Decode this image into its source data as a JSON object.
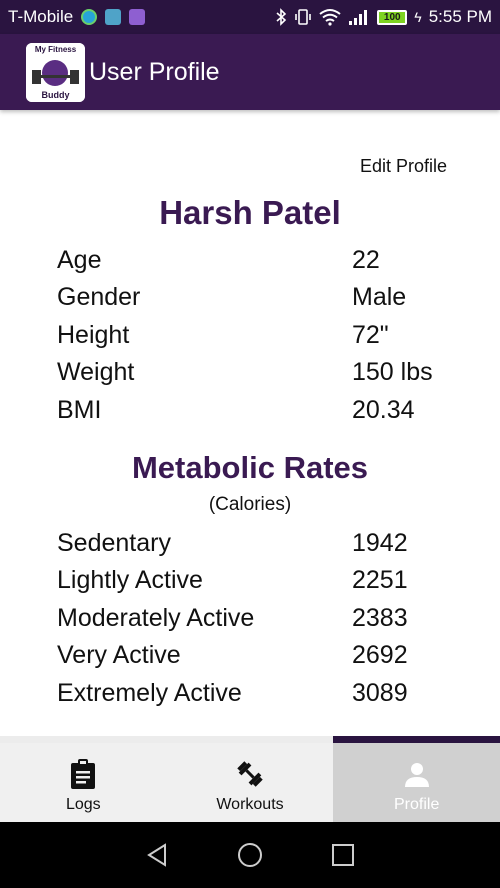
{
  "status_bar": {
    "carrier": "T-Mobile",
    "battery_level": "100",
    "time": "5:55 PM"
  },
  "app_bar": {
    "logo_text_line1": "My Fitness",
    "logo_text_line2": "Buddy",
    "title": "User Profile"
  },
  "profile": {
    "edit_label": "Edit Profile",
    "name": "Harsh Patel",
    "stats": [
      {
        "label": "Age",
        "value": "22"
      },
      {
        "label": "Gender",
        "value": "Male"
      },
      {
        "label": "Height",
        "value": "72\""
      },
      {
        "label": "Weight",
        "value": "150 lbs"
      },
      {
        "label": "BMI",
        "value": "20.34"
      }
    ]
  },
  "metabolic": {
    "title": "Metabolic Rates",
    "subtitle": "(Calories)",
    "rates": [
      {
        "label": "Sedentary",
        "value": "1942"
      },
      {
        "label": "Lightly Active",
        "value": "2251"
      },
      {
        "label": "Moderately Active",
        "value": "2383"
      },
      {
        "label": "Very Active",
        "value": "2692"
      },
      {
        "label": "Extremely Active",
        "value": "3089"
      }
    ]
  },
  "bottom_nav": {
    "tabs": [
      {
        "label": "Logs",
        "icon": "clipboard-icon"
      },
      {
        "label": "Workouts",
        "icon": "dumbbell-icon"
      },
      {
        "label": "Profile",
        "icon": "person-icon",
        "active": true
      }
    ]
  },
  "colors": {
    "brand_dark": "#2a1440",
    "brand": "#3a1a52",
    "battery": "#7ed321"
  }
}
